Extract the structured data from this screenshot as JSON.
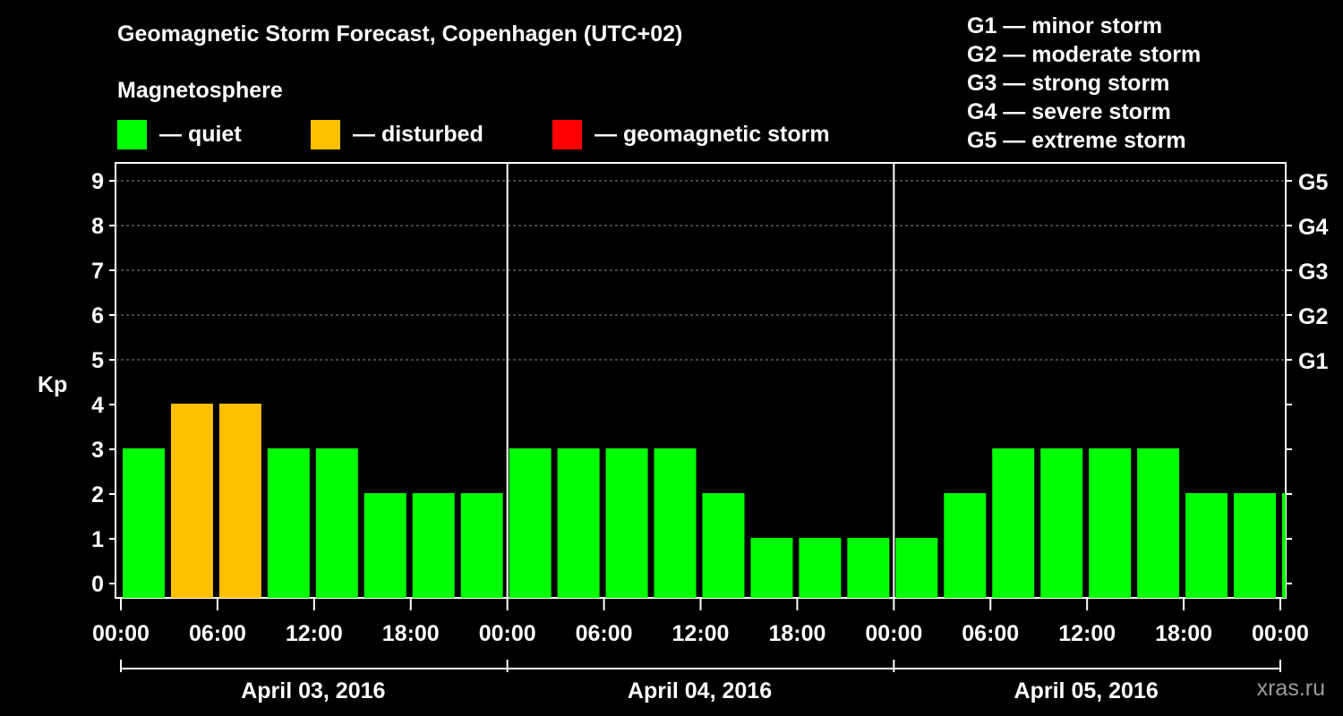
{
  "title": "Geomagnetic Storm Forecast, Copenhagen (UTC+02)",
  "subtitle": "Magnetosphere",
  "legend": [
    {
      "label": "— quiet",
      "color": "#00ff00"
    },
    {
      "label": "— disturbed",
      "color": "#ffc000"
    },
    {
      "label": "— geomagnetic storm",
      "color": "#ff0000"
    }
  ],
  "storm_levels": [
    "G1 — minor storm",
    "G2 — moderate storm",
    "G3 — strong storm",
    "G4 — severe storm",
    "G5 — extreme storm"
  ],
  "watermark": "xras.ru",
  "chart_data": {
    "type": "bar",
    "ylabel": "Kp",
    "ylim": [
      0,
      9
    ],
    "y_ticks": [
      0,
      1,
      2,
      3,
      4,
      5,
      6,
      7,
      8,
      9
    ],
    "right_axis_labels": [
      {
        "kp": 5,
        "label": "G1"
      },
      {
        "kp": 6,
        "label": "G2"
      },
      {
        "kp": 7,
        "label": "G3"
      },
      {
        "kp": 8,
        "label": "G4"
      },
      {
        "kp": 9,
        "label": "G5"
      }
    ],
    "x_tick_labels": [
      "00:00",
      "06:00",
      "12:00",
      "18:00",
      "00:00",
      "06:00",
      "12:00",
      "18:00",
      "00:00",
      "06:00",
      "12:00",
      "18:00",
      "00:00"
    ],
    "days": [
      "April 03, 2016",
      "April 04, 2016",
      "April 05, 2016"
    ],
    "interval_hours": 3,
    "values": [
      3,
      4,
      4,
      3,
      3,
      2,
      2,
      2,
      3,
      3,
      3,
      3,
      2,
      1,
      1,
      1,
      1,
      2,
      3,
      3,
      3,
      3,
      2,
      2,
      2
    ],
    "colors": {
      "quiet": "#00ff00",
      "disturbed": "#ffc000",
      "storm": "#ff0000"
    },
    "grid": true
  }
}
